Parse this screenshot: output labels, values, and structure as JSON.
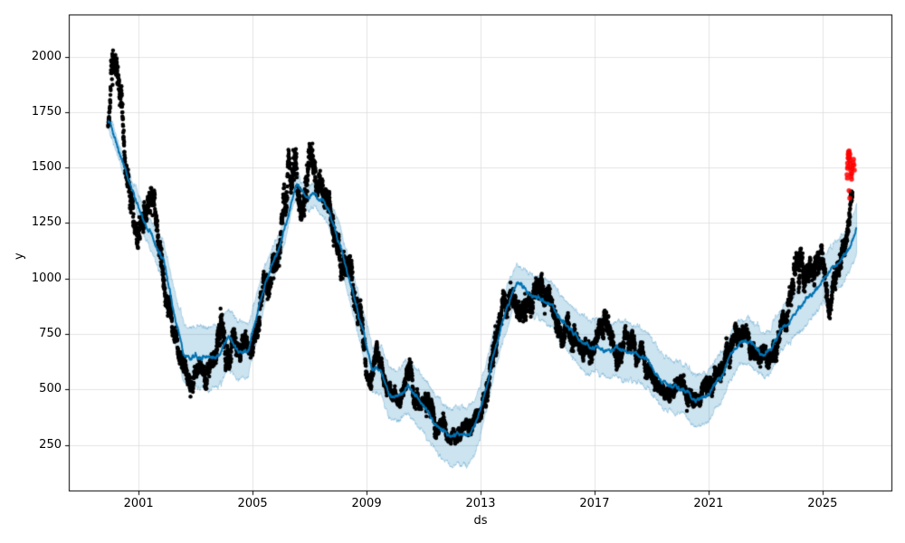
{
  "figure": {
    "background": "#ffffff"
  },
  "chart_data": {
    "type": "scatter",
    "subtype": "prophet-forecast",
    "title": "",
    "xlabel": "ds",
    "ylabel": "y",
    "xlim": [
      1998.55,
      2027.45
    ],
    "ylim": [
      40,
      2190
    ],
    "grid": true,
    "legend": "none",
    "xticks": [
      2001,
      2005,
      2009,
      2013,
      2017,
      2021,
      2025
    ],
    "xtick_labels": [
      "2001",
      "2005",
      "2009",
      "2013",
      "2017",
      "2021",
      "2025"
    ],
    "yticks": [
      250,
      500,
      750,
      1000,
      1250,
      1500,
      1750,
      2000
    ],
    "ytick_labels": [
      "250",
      "500",
      "750",
      "1000",
      "1250",
      "1500",
      "1750",
      "2000"
    ],
    "colors": {
      "observed": "#000000",
      "forecast_line": "#0072B2",
      "uncertainty": "#0072B2",
      "uncertainty_alpha": 0.2,
      "anomaly": "#ff0000",
      "grid": "#e3e3e3",
      "spine": "#000000",
      "text": "#000000"
    },
    "forecast": {
      "points": [
        [
          1999.93,
          1713,
          32
        ],
        [
          2000.15,
          1635,
          34
        ],
        [
          2000.35,
          1560,
          36
        ],
        [
          2000.55,
          1490,
          40
        ],
        [
          2000.8,
          1390,
          45
        ],
        [
          2001.0,
          1318,
          52
        ],
        [
          2001.25,
          1240,
          62
        ],
        [
          2001.5,
          1180,
          72
        ],
        [
          2001.7,
          1120,
          82
        ],
        [
          2001.9,
          1070,
          92
        ],
        [
          2002.1,
          940,
          104
        ],
        [
          2002.3,
          800,
          118
        ],
        [
          2002.6,
          655,
          132
        ],
        [
          2002.85,
          642,
          138
        ],
        [
          2003.2,
          648,
          140
        ],
        [
          2003.5,
          642,
          140
        ],
        [
          2003.8,
          655,
          140
        ],
        [
          2004.16,
          729,
          135
        ],
        [
          2004.5,
          676,
          130
        ],
        [
          2004.85,
          678,
          120
        ],
        [
          2005.06,
          796,
          105
        ],
        [
          2005.38,
          945,
          92
        ],
        [
          2005.7,
          1067,
          78
        ],
        [
          2005.95,
          1140,
          68
        ],
        [
          2006.2,
          1255,
          58
        ],
        [
          2006.4,
          1360,
          50
        ],
        [
          2006.55,
          1421,
          46
        ],
        [
          2006.8,
          1384,
          50
        ],
        [
          2007.0,
          1366,
          54
        ],
        [
          2007.2,
          1382,
          55
        ],
        [
          2007.45,
          1345,
          58
        ],
        [
          2007.65,
          1312,
          62
        ],
        [
          2007.9,
          1223,
          70
        ],
        [
          2008.2,
          1093,
          80
        ],
        [
          2008.55,
          918,
          90
        ],
        [
          2008.8,
          796,
          96
        ],
        [
          2009.0,
          694,
          101
        ],
        [
          2009.2,
          590,
          106
        ],
        [
          2009.5,
          582,
          110
        ],
        [
          2009.8,
          487,
          113
        ],
        [
          2010.1,
          470,
          116
        ],
        [
          2010.45,
          512,
          118
        ],
        [
          2010.8,
          462,
          120
        ],
        [
          2011.1,
          410,
          122
        ],
        [
          2011.4,
          350,
          125
        ],
        [
          2011.7,
          308,
          128
        ],
        [
          2011.95,
          290,
          130
        ],
        [
          2012.2,
          294,
          130
        ],
        [
          2012.5,
          287,
          130
        ],
        [
          2012.8,
          335,
          125
        ],
        [
          2013.0,
          408,
          118
        ],
        [
          2013.2,
          510,
          110
        ],
        [
          2013.5,
          685,
          100
        ],
        [
          2013.85,
          835,
          92
        ],
        [
          2014.05,
          917,
          88
        ],
        [
          2014.27,
          983,
          85
        ],
        [
          2014.6,
          949,
          88
        ],
        [
          2014.9,
          919,
          92
        ],
        [
          2015.2,
          906,
          95
        ],
        [
          2015.55,
          871,
          100
        ],
        [
          2015.85,
          810,
          105
        ],
        [
          2016.2,
          764,
          110
        ],
        [
          2016.5,
          715,
          115
        ],
        [
          2016.8,
          688,
          120
        ],
        [
          2017.1,
          695,
          125
        ],
        [
          2017.45,
          675,
          128
        ],
        [
          2017.75,
          688,
          128
        ],
        [
          2018.1,
          675,
          128
        ],
        [
          2018.4,
          662,
          127
        ],
        [
          2018.7,
          647,
          126
        ],
        [
          2019.0,
          607,
          124
        ],
        [
          2019.3,
          550,
          122
        ],
        [
          2019.6,
          520,
          120
        ],
        [
          2019.9,
          512,
          118
        ],
        [
          2020.1,
          500,
          116
        ],
        [
          2020.35,
          478,
          115
        ],
        [
          2020.55,
          451,
          114
        ],
        [
          2020.75,
          459,
          113
        ],
        [
          2020.95,
          468,
          112
        ],
        [
          2021.25,
          533,
          111
        ],
        [
          2021.5,
          567,
          110
        ],
        [
          2021.7,
          635,
          108
        ],
        [
          2021.9,
          683,
          106
        ],
        [
          2022.15,
          710,
          104
        ],
        [
          2022.4,
          718,
          103
        ],
        [
          2022.7,
          683,
          102
        ],
        [
          2022.9,
          657,
          101
        ],
        [
          2023.15,
          670,
          100
        ],
        [
          2023.5,
          764,
          99
        ],
        [
          2023.75,
          799,
          98
        ],
        [
          2024.0,
          832,
          98
        ],
        [
          2024.25,
          873,
          99
        ],
        [
          2024.5,
          913,
          100
        ],
        [
          2024.8,
          954,
          102
        ],
        [
          2025.05,
          995,
          104
        ],
        [
          2025.3,
          1035,
          106
        ],
        [
          2025.6,
          1076,
          108
        ],
        [
          2025.85,
          1117,
          110
        ],
        [
          2026.0,
          1150,
          112
        ],
        [
          2026.1,
          1190,
          114
        ],
        [
          2026.2,
          1228,
          115
        ]
      ]
    },
    "observed": {
      "envelope": [
        [
          1999.93,
          1690,
          60
        ],
        [
          2000.05,
          1940,
          140
        ],
        [
          2000.18,
          1860,
          120
        ],
        [
          2000.32,
          1800,
          120
        ],
        [
          2000.45,
          1670,
          110
        ],
        [
          2000.6,
          1480,
          100
        ],
        [
          2000.75,
          1350,
          90
        ],
        [
          2000.95,
          1220,
          80
        ],
        [
          2001.15,
          1270,
          90
        ],
        [
          2001.35,
          1380,
          90
        ],
        [
          2001.5,
          1390,
          90
        ],
        [
          2001.65,
          1230,
          100
        ],
        [
          2001.8,
          1050,
          90
        ],
        [
          2001.95,
          920,
          80
        ],
        [
          2002.1,
          850,
          70
        ],
        [
          2002.25,
          740,
          60
        ],
        [
          2002.4,
          660,
          55
        ],
        [
          2002.6,
          610,
          60
        ],
        [
          2002.8,
          520,
          70
        ],
        [
          2003.0,
          575,
          70
        ],
        [
          2003.2,
          625,
          60
        ],
        [
          2003.45,
          590,
          70
        ],
        [
          2003.65,
          670,
          70
        ],
        [
          2003.85,
          810,
          110
        ],
        [
          2004.0,
          740,
          100
        ],
        [
          2004.15,
          700,
          80
        ],
        [
          2004.3,
          800,
          100
        ],
        [
          2004.5,
          680,
          70
        ],
        [
          2004.7,
          660,
          60
        ],
        [
          2004.9,
          705,
          60
        ],
        [
          2005.1,
          790,
          70
        ],
        [
          2005.3,
          900,
          80
        ],
        [
          2005.55,
          1010,
          80
        ],
        [
          2005.75,
          1090,
          80
        ],
        [
          2005.95,
          1160,
          90
        ],
        [
          2006.15,
          1300,
          130
        ],
        [
          2006.3,
          1520,
          130
        ],
        [
          2006.5,
          1440,
          140
        ],
        [
          2006.7,
          1280,
          110
        ],
        [
          2006.9,
          1450,
          140
        ],
        [
          2007.1,
          1540,
          110
        ],
        [
          2007.3,
          1420,
          110
        ],
        [
          2007.5,
          1360,
          90
        ],
        [
          2007.7,
          1310,
          90
        ],
        [
          2007.9,
          1210,
          90
        ],
        [
          2008.1,
          1060,
          90
        ],
        [
          2008.35,
          1060,
          110
        ],
        [
          2008.55,
          1000,
          120
        ],
        [
          2008.75,
          860,
          100
        ],
        [
          2008.95,
          710,
          85
        ],
        [
          2009.15,
          600,
          70
        ],
        [
          2009.35,
          630,
          70
        ],
        [
          2009.55,
          560,
          60
        ],
        [
          2009.75,
          500,
          50
        ],
        [
          2009.95,
          470,
          45
        ],
        [
          2010.15,
          485,
          50
        ],
        [
          2010.45,
          560,
          75
        ],
        [
          2010.7,
          470,
          60
        ],
        [
          2010.9,
          435,
          50
        ],
        [
          2011.1,
          420,
          50
        ],
        [
          2011.3,
          395,
          60
        ],
        [
          2011.5,
          345,
          50
        ],
        [
          2011.7,
          330,
          50
        ],
        [
          2011.9,
          302,
          42
        ],
        [
          2012.1,
          290,
          48
        ],
        [
          2012.3,
          272,
          40
        ],
        [
          2012.5,
          300,
          45
        ],
        [
          2012.7,
          322,
          50
        ],
        [
          2012.9,
          380,
          60
        ],
        [
          2013.1,
          480,
          70
        ],
        [
          2013.3,
          600,
          80
        ],
        [
          2013.5,
          700,
          90
        ],
        [
          2013.7,
          820,
          90
        ],
        [
          2013.9,
          930,
          90
        ],
        [
          2014.1,
          950,
          88
        ],
        [
          2014.3,
          955,
          85
        ],
        [
          2014.5,
          905,
          80
        ],
        [
          2014.7,
          880,
          80
        ],
        [
          2014.9,
          900,
          80
        ],
        [
          2015.1,
          945,
          80
        ],
        [
          2015.3,
          945,
          80
        ],
        [
          2015.5,
          870,
          80
        ],
        [
          2015.7,
          830,
          80
        ],
        [
          2015.9,
          808,
          80
        ],
        [
          2016.1,
          775,
          70
        ],
        [
          2016.3,
          700,
          70
        ],
        [
          2016.5,
          648,
          60
        ],
        [
          2016.7,
          678,
          70
        ],
        [
          2016.9,
          700,
          70
        ],
        [
          2017.1,
          720,
          80
        ],
        [
          2017.3,
          775,
          88
        ],
        [
          2017.5,
          720,
          80
        ],
        [
          2017.7,
          700,
          70
        ],
        [
          2017.9,
          682,
          70
        ],
        [
          2018.1,
          700,
          70
        ],
        [
          2018.3,
          680,
          70
        ],
        [
          2018.5,
          650,
          60
        ],
        [
          2018.7,
          622,
          60
        ],
        [
          2018.9,
          600,
          60
        ],
        [
          2019.1,
          560,
          60
        ],
        [
          2019.3,
          520,
          60
        ],
        [
          2019.5,
          500,
          50
        ],
        [
          2019.7,
          482,
          50
        ],
        [
          2019.9,
          500,
          50
        ],
        [
          2020.1,
          520,
          60
        ],
        [
          2020.3,
          480,
          60
        ],
        [
          2020.5,
          432,
          50
        ],
        [
          2020.7,
          460,
          50
        ],
        [
          2020.9,
          480,
          50
        ],
        [
          2021.1,
          520,
          60
        ],
        [
          2021.3,
          560,
          60
        ],
        [
          2021.5,
          600,
          60
        ],
        [
          2021.7,
          650,
          70
        ],
        [
          2021.9,
          700,
          70
        ],
        [
          2022.1,
          718,
          70
        ],
        [
          2022.3,
          700,
          70
        ],
        [
          2022.5,
          642,
          60
        ],
        [
          2022.7,
          620,
          60
        ],
        [
          2022.9,
          602,
          60
        ],
        [
          2023.1,
          640,
          60
        ],
        [
          2023.3,
          700,
          70
        ],
        [
          2023.5,
          760,
          70
        ],
        [
          2023.7,
          820,
          80
        ],
        [
          2023.9,
          900,
          90
        ],
        [
          2024.1,
          1090,
          140
        ],
        [
          2024.25,
          1140,
          150
        ],
        [
          2024.4,
          1000,
          100
        ],
        [
          2024.6,
          950,
          90
        ],
        [
          2024.8,
          1000,
          90
        ],
        [
          2025.0,
          1045,
          90
        ],
        [
          2025.2,
          900,
          95
        ],
        [
          2025.35,
          950,
          80
        ],
        [
          2025.5,
          1000,
          80
        ],
        [
          2025.7,
          1050,
          80
        ],
        [
          2025.85,
          1150,
          95
        ],
        [
          2025.95,
          1290,
          85
        ],
        [
          2026.05,
          1360,
          38
        ]
      ],
      "points_per_year": 260,
      "seed": 7,
      "ar_phi": 0.97,
      "ar_sigma": 0.13,
      "jitter": 0.18,
      "dot_radius": 2.2
    },
    "anomalies": {
      "dot_radius": 2.7,
      "points": [
        [
          2025.86,
          1468
        ],
        [
          2025.87,
          1452
        ],
        [
          2025.875,
          1496
        ],
        [
          2025.88,
          1520
        ],
        [
          2025.89,
          1505
        ],
        [
          2025.895,
          1543
        ],
        [
          2025.9,
          1560
        ],
        [
          2025.91,
          1571
        ],
        [
          2025.915,
          1554
        ],
        [
          2025.92,
          1540
        ],
        [
          2025.93,
          1565
        ],
        [
          2025.935,
          1575
        ],
        [
          2025.94,
          1549
        ],
        [
          2025.95,
          1530
        ],
        [
          2025.955,
          1544
        ],
        [
          2025.96,
          1561
        ],
        [
          2025.97,
          1519
        ],
        [
          2025.98,
          1500
        ],
        [
          2025.99,
          1486
        ],
        [
          2026.0,
          1470
        ],
        [
          2026.01,
          1459
        ],
        [
          2026.02,
          1447
        ],
        [
          2026.03,
          1473
        ],
        [
          2026.045,
          1494
        ],
        [
          2026.06,
          1509
        ],
        [
          2026.075,
          1524
        ],
        [
          2026.09,
          1537
        ],
        [
          2026.105,
          1512
        ],
        [
          2026.12,
          1488
        ],
        [
          2025.93,
          1396
        ],
        [
          2025.955,
          1362
        ]
      ]
    }
  }
}
